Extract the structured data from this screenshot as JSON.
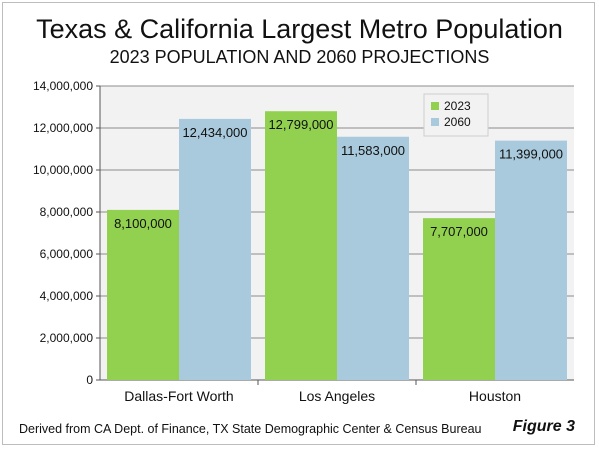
{
  "chart_data": {
    "type": "bar",
    "title": "Texas & California Largest Metro Population",
    "subtitle": "2023 POPULATION AND 2060 PROJECTIONS",
    "categories": [
      "Dallas-Fort Worth",
      "Los Angeles",
      "Houston"
    ],
    "series": [
      {
        "name": "2023",
        "values": [
          8100000,
          12799000,
          7707000
        ],
        "labels": [
          "8,100,000",
          "12,799,000",
          "7,707,000"
        ],
        "color": "#92d050"
      },
      {
        "name": "2060",
        "values": [
          12434000,
          11583000,
          11399000
        ],
        "labels": [
          "12,434,000",
          "11,583,000",
          "11,399,000"
        ],
        "color": "#a9cadc"
      }
    ],
    "ylim": [
      0,
      14000000
    ],
    "yticks": [
      0,
      2000000,
      4000000,
      6000000,
      8000000,
      10000000,
      12000000,
      14000000
    ],
    "ytick_labels": [
      "0",
      "2,000,000",
      "4,000,000",
      "6,000,000",
      "8,000,000",
      "10,000,000",
      "12,000,000",
      "14,000,000"
    ],
    "grid": true,
    "legend_position": "top-right"
  },
  "source_note": "Derived from CA Dept. of Finance, TX State Demographic Center & Census Bureau",
  "figure_label": "Figure 3"
}
